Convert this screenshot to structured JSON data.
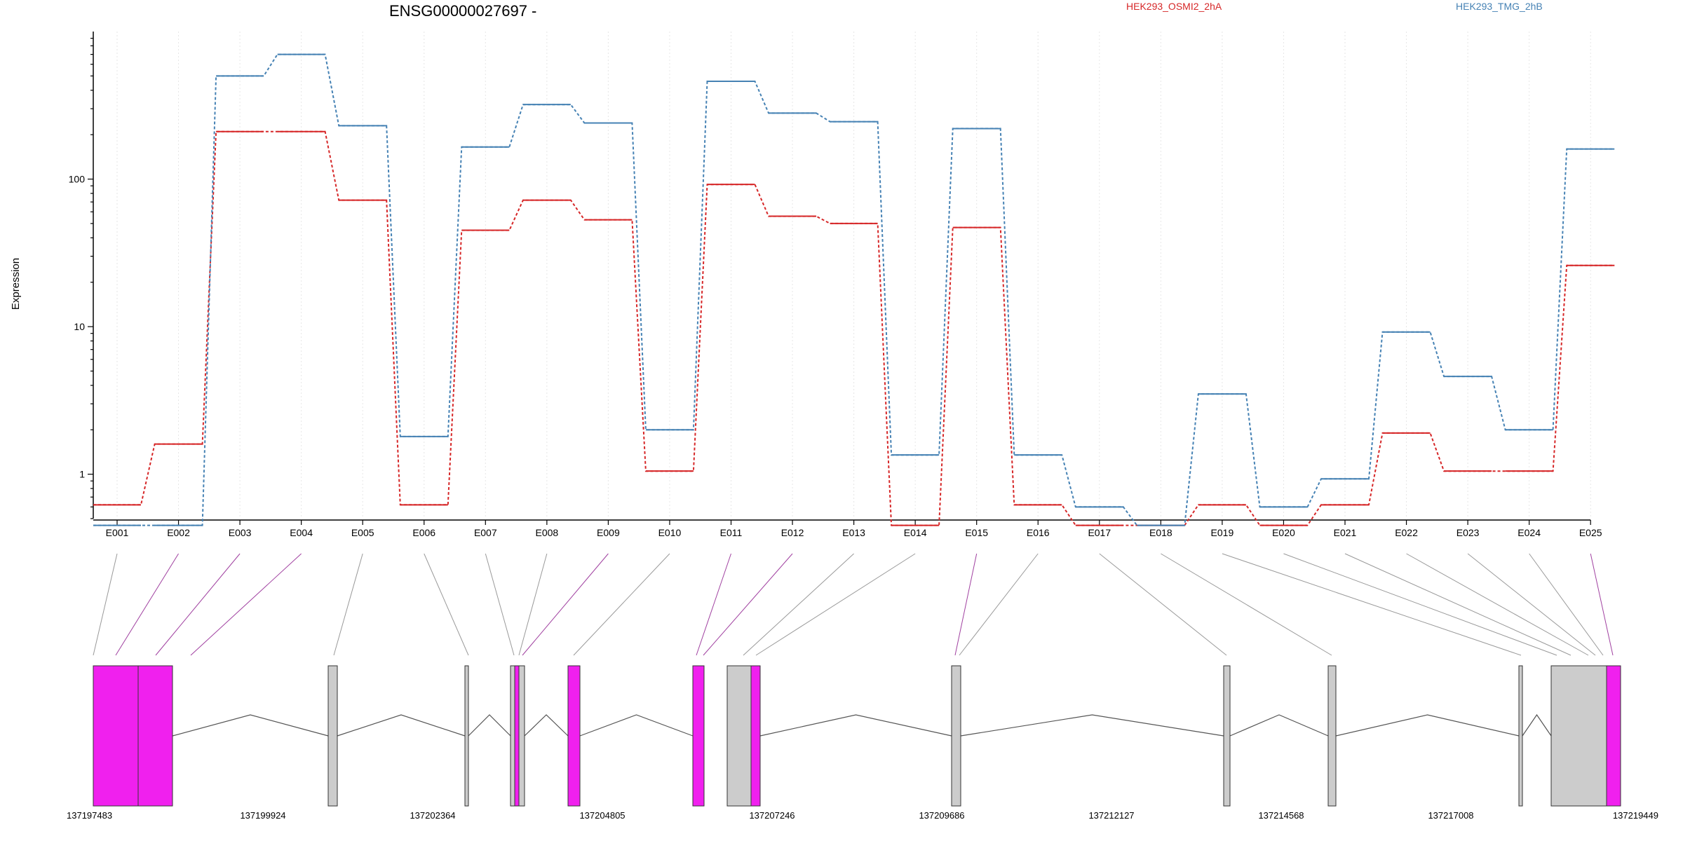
{
  "chart_data": {
    "type": "line",
    "title": "ENSG00000027697 -",
    "ylabel": "Expression",
    "yscale": "log",
    "ylim": [
      0.5,
      1000
    ],
    "yticks": [
      {
        "value": 1,
        "label": "1"
      },
      {
        "value": 10,
        "label": "10"
      },
      {
        "value": 100,
        "label": "100"
      }
    ],
    "categories": [
      "E001",
      "E002",
      "E003",
      "E004",
      "E005",
      "E006",
      "E007",
      "E008",
      "E009",
      "E010",
      "E011",
      "E012",
      "E013",
      "E014",
      "E015",
      "E016",
      "E017",
      "E018",
      "E019",
      "E020",
      "E021",
      "E022",
      "E023",
      "E024",
      "E025"
    ],
    "series": [
      {
        "name": "HEK293_OSMI2_2hA",
        "color": "#d62728",
        "values": [
          0.62,
          1.6,
          210,
          210,
          72,
          0.62,
          45,
          72,
          53,
          1.05,
          92,
          56,
          50,
          0.45,
          47,
          0.62,
          0.45,
          0.45,
          0.62,
          0.45,
          0.62,
          1.9,
          1.05,
          1.05,
          26
        ]
      },
      {
        "name": "HEK293_TMG_2hB",
        "color": "#4682b4",
        "values": [
          0.45,
          0.45,
          500,
          700,
          230,
          1.8,
          165,
          320,
          240,
          2.0,
          460,
          280,
          245,
          1.35,
          220,
          1.35,
          0.6,
          0.45,
          3.5,
          0.6,
          0.93,
          9.2,
          4.6,
          2.0,
          160
        ]
      }
    ],
    "genomic_coords": [
      "137197483",
      "137199924",
      "137202364",
      "137204805",
      "137207246",
      "137209686",
      "137212127",
      "137214568",
      "137217008",
      "137219449"
    ],
    "exon_colors": {
      "significant": "#f020ee",
      "other": "#cccccc"
    },
    "grid": true
  }
}
